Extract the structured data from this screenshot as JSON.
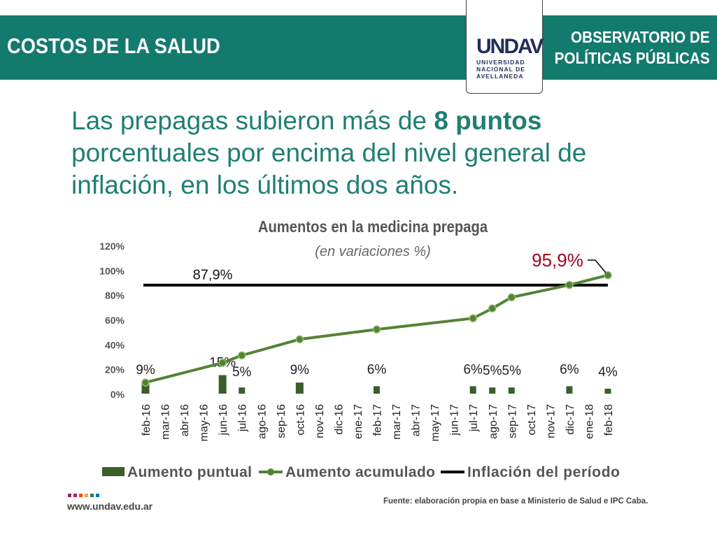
{
  "header": {
    "left_title": "COSTOS DE LA SALUD",
    "right_title_line1": "OBSERVATORIO DE",
    "right_title_line2": "POLÍTICAS PÚBLICAS",
    "logo_mark": "UNDAV",
    "logo_sub1": "UNIVERSIDAD",
    "logo_sub2": "NACIONAL DE",
    "logo_sub3": "AVELLANEDA"
  },
  "headline": {
    "pre": "Las prepagas subieron más de ",
    "bold": "8 puntos",
    "post": " porcentuales por encima del nivel general de inflación, en los últimos dos años."
  },
  "footer": {
    "url": "www.undav.edu.ar",
    "source": "Fuente: elaboración propia en base a Ministerio de Salud e IPC Caba."
  },
  "colors": {
    "teal": "#137a6e",
    "green": "#548235",
    "bar": "#3b5e2b",
    "red": "#a50021"
  },
  "chart_data": {
    "type": "bar+line",
    "title": "Aumentos en la medicina prepaga",
    "subtitle": "(en variaciones %)",
    "ylim": [
      0,
      120
    ],
    "yticks": [
      "0%",
      "20%",
      "40%",
      "60%",
      "80%",
      "100%",
      "120%"
    ],
    "categories": [
      "feb-16",
      "mar-16",
      "abr-16",
      "may-16",
      "jun-16",
      "jul-16",
      "ago-16",
      "sep-16",
      "oct-16",
      "nov-16",
      "dic-16",
      "ene-17",
      "feb-17",
      "mar-17",
      "abr-17",
      "may-17",
      "jun-17",
      "jul-17",
      "ago-17",
      "sep-17",
      "oct-17",
      "nov-17",
      "dic-17",
      "ene-18",
      "feb-18"
    ],
    "series": [
      {
        "name": "Aumento puntual",
        "type": "bar",
        "values": [
          9,
          null,
          null,
          null,
          15,
          5,
          null,
          null,
          9,
          null,
          null,
          null,
          6,
          null,
          null,
          null,
          null,
          6,
          5,
          5,
          null,
          null,
          6,
          null,
          4
        ],
        "labels": [
          "9%",
          null,
          null,
          null,
          "15%",
          "5%",
          null,
          null,
          "9%",
          null,
          null,
          null,
          "6%",
          null,
          null,
          null,
          null,
          "6%",
          "5%",
          "5%",
          null,
          null,
          "6%",
          null,
          "4%"
        ]
      },
      {
        "name": "Aumento acumulado",
        "type": "line",
        "values": [
          9,
          null,
          null,
          null,
          25,
          31,
          null,
          null,
          44,
          null,
          null,
          null,
          52,
          null,
          null,
          null,
          null,
          61,
          69,
          78,
          null,
          null,
          88,
          null,
          95.9
        ]
      },
      {
        "name": "Inflación del período",
        "type": "hline",
        "value": 87.9,
        "label": "87,9%"
      }
    ],
    "annotation": "95,9%",
    "legend": "bottom"
  }
}
